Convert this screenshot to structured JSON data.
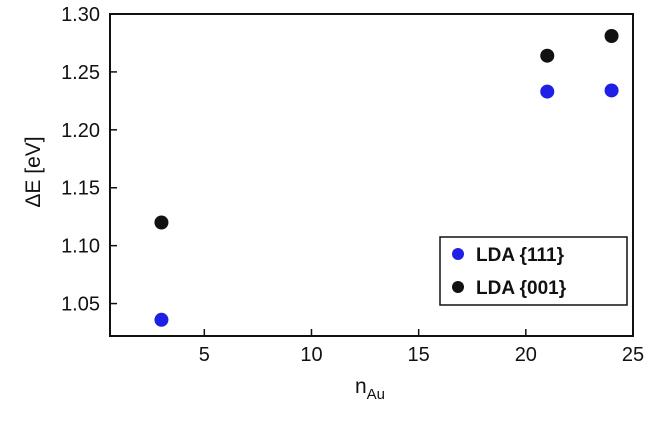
{
  "chart_data": {
    "type": "scatter",
    "title": "",
    "xlabel": {
      "main": "n",
      "sub": "Au"
    },
    "ylabel": "ΔE  [eV]",
    "xlim": [
      0.6,
      25
    ],
    "ylim": [
      1.022,
      1.3
    ],
    "xticks": [
      5,
      10,
      15,
      20,
      25
    ],
    "yticks": [
      1.05,
      1.1,
      1.15,
      1.2,
      1.25,
      1.3
    ],
    "xtick_labels": [
      "5",
      "10",
      "15",
      "20",
      "25"
    ],
    "ytick_labels": [
      "1.05",
      "1.10",
      "1.15",
      "1.20",
      "1.25",
      "1.30"
    ],
    "grid": false,
    "legend_position": "bottom-right",
    "series": [
      {
        "name": "LDA {111}",
        "color": "#1f1fe6",
        "points": [
          {
            "x": 3,
            "y": 1.036
          },
          {
            "x": 21,
            "y": 1.233
          },
          {
            "x": 24,
            "y": 1.234
          }
        ]
      },
      {
        "name": "LDA {001}",
        "color": "#111111",
        "points": [
          {
            "x": 3,
            "y": 1.12
          },
          {
            "x": 21,
            "y": 1.264
          },
          {
            "x": 24,
            "y": 1.281
          }
        ]
      }
    ]
  }
}
